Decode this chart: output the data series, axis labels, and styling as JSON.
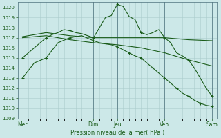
{
  "background_color": "#cce8e8",
  "grid_color": "#aacccc",
  "line_color": "#1a5c1a",
  "marker_color": "#1a5c1a",
  "xlabel": "Pression niveau de la mer( hPa )",
  "ylim": [
    1009,
    1020.5
  ],
  "yticks": [
    1009,
    1010,
    1011,
    1012,
    1013,
    1014,
    1015,
    1016,
    1017,
    1018,
    1019,
    1020
  ],
  "xtick_labels": [
    "Mer",
    "Dim",
    "Jeu",
    "Ven",
    "Sam"
  ],
  "xtick_pos": [
    0,
    3,
    4,
    6,
    8
  ],
  "vlines": [
    0,
    3,
    4,
    6,
    8
  ],
  "series1_x": [
    0,
    0.25,
    0.5,
    0.75,
    1.0,
    1.25,
    1.5,
    1.75,
    2.0,
    2.25,
    2.5,
    2.75,
    3.0,
    3.25,
    3.5,
    3.75,
    4.0,
    4.25,
    4.5,
    4.75,
    5.0,
    5.25,
    5.5,
    5.75,
    6.0,
    6.25,
    6.5,
    6.75,
    7.0,
    7.25,
    7.5,
    7.75,
    8.0
  ],
  "series1_y": [
    1015.0,
    1015.5,
    1016.0,
    1016.5,
    1017.0,
    1017.3,
    1017.5,
    1017.8,
    1017.7,
    1017.5,
    1017.4,
    1017.2,
    1017.0,
    1018.0,
    1019.0,
    1019.2,
    1020.3,
    1020.1,
    1019.1,
    1018.8,
    1017.5,
    1017.3,
    1017.5,
    1017.8,
    1017.0,
    1016.5,
    1015.5,
    1015.2,
    1014.8,
    1014.0,
    1013.0,
    1012.0,
    1011.2
  ],
  "series2_x": [
    0,
    1,
    2,
    3,
    4,
    5,
    6,
    7,
    8
  ],
  "series2_y": [
    1017.1,
    1017.5,
    1017.2,
    1017.0,
    1017.0,
    1017.0,
    1017.0,
    1016.8,
    1016.7
  ],
  "series3_x": [
    0,
    1,
    2,
    3,
    4,
    5,
    6,
    7,
    8
  ],
  "series3_y": [
    1017.0,
    1017.2,
    1016.8,
    1016.5,
    1016.3,
    1016.0,
    1015.5,
    1014.8,
    1014.2
  ],
  "series4_x": [
    0,
    0.5,
    1.0,
    1.5,
    2.0,
    2.5,
    3.0,
    3.25,
    3.5,
    3.75,
    4.0,
    4.25,
    4.5,
    4.75,
    5.0,
    5.25,
    5.5,
    5.75,
    6.0,
    6.25,
    6.5,
    6.75,
    7.0,
    7.25,
    7.5,
    7.75,
    8.0
  ],
  "series4_y": [
    1013.0,
    1014.5,
    1015.0,
    1016.5,
    1017.0,
    1017.2,
    1016.7,
    1016.5,
    1016.4,
    1016.3,
    1016.1,
    1015.8,
    1015.5,
    1015.2,
    1015.0,
    1014.5,
    1014.0,
    1013.5,
    1013.0,
    1012.5,
    1012.0,
    1011.5,
    1011.2,
    1010.8,
    1010.5,
    1010.3,
    1010.2
  ]
}
